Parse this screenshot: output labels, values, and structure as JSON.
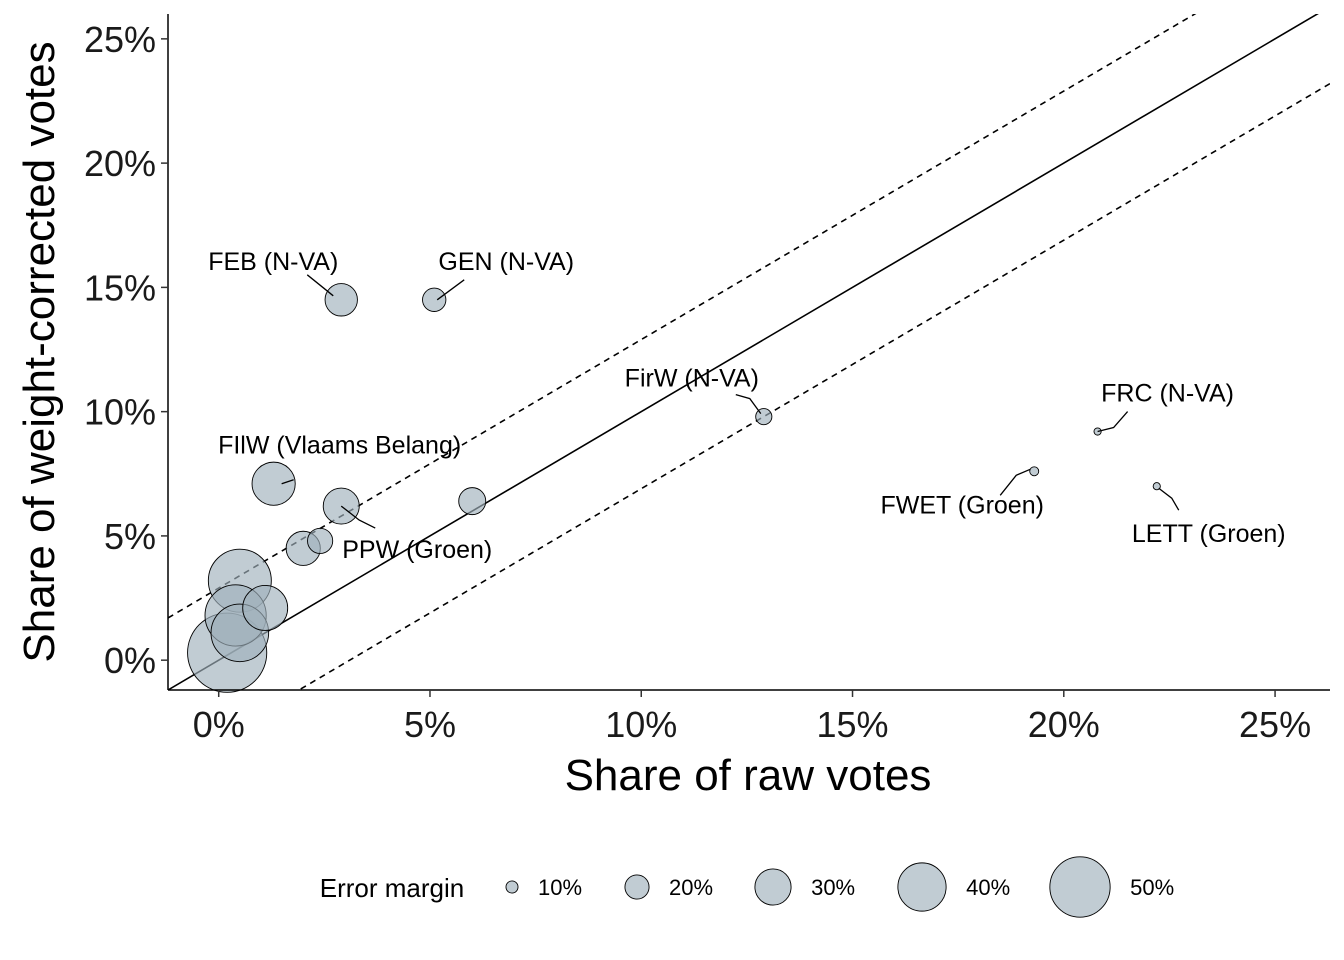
{
  "chart_data": {
    "type": "scatter",
    "xlabel": "Share of raw votes",
    "ylabel": "Share of weight-corrected votes",
    "xlim": [
      -1.2,
      26.3
    ],
    "ylim": [
      -1.2,
      26.0
    ],
    "xticks": [
      0,
      5,
      10,
      15,
      20,
      25
    ],
    "yticks": [
      0,
      5,
      10,
      15,
      20,
      25
    ],
    "tick_labels": [
      "0%",
      "5%",
      "10%",
      "15%",
      "20%",
      "25%"
    ],
    "grid": false,
    "reference_lines": [
      {
        "kind": "solid",
        "intercept": 0,
        "slope": 1
      },
      {
        "kind": "dashed",
        "intercept": 2.9,
        "slope": 1
      },
      {
        "kind": "dashed",
        "intercept": -3.1,
        "slope": 1
      }
    ],
    "point_color": "#9fb0bb",
    "point_stroke": "#000000",
    "points": [
      {
        "x": 2.9,
        "y": 14.5,
        "err": 18,
        "label": "FEB (N-VA)"
      },
      {
        "x": 5.1,
        "y": 14.5,
        "err": 13,
        "label": "GEN (N-VA)"
      },
      {
        "x": 12.9,
        "y": 9.8,
        "err": 9,
        "label": "FirW (N-VA)"
      },
      {
        "x": 20.8,
        "y": 9.2,
        "err": 4,
        "label": "FRC (N-VA)"
      },
      {
        "x": 19.3,
        "y": 7.6,
        "err": 5,
        "label": "FWET (Groen)"
      },
      {
        "x": 22.2,
        "y": 7.0,
        "err": 4,
        "label": "LETT (Groen)"
      },
      {
        "x": 1.3,
        "y": 7.1,
        "err": 24,
        "label": "FIlW (Vlaams Belang)"
      },
      {
        "x": 2.9,
        "y": 6.2,
        "err": 20,
        "label": "PPW (Groen)"
      },
      {
        "x": 6.0,
        "y": 6.4,
        "err": 15,
        "label": ""
      },
      {
        "x": 2.0,
        "y": 4.5,
        "err": 19,
        "label": ""
      },
      {
        "x": 2.4,
        "y": 4.8,
        "err": 14,
        "label": ""
      },
      {
        "x": 0.5,
        "y": 3.2,
        "err": 35,
        "label": ""
      },
      {
        "x": 1.1,
        "y": 2.1,
        "err": 25,
        "label": ""
      },
      {
        "x": 0.4,
        "y": 1.8,
        "err": 34,
        "label": ""
      },
      {
        "x": 0.5,
        "y": 1.1,
        "err": 32,
        "label": ""
      },
      {
        "x": 0.2,
        "y": 0.3,
        "err": 44,
        "label": ""
      }
    ],
    "legend": {
      "title": "Error margin",
      "position": "bottom",
      "entries": [
        {
          "value": 10,
          "label": "10%"
        },
        {
          "value": 20,
          "label": "20%"
        },
        {
          "value": 30,
          "label": "30%"
        },
        {
          "value": 40,
          "label": "40%"
        },
        {
          "value": 50,
          "label": "50%"
        }
      ]
    }
  }
}
